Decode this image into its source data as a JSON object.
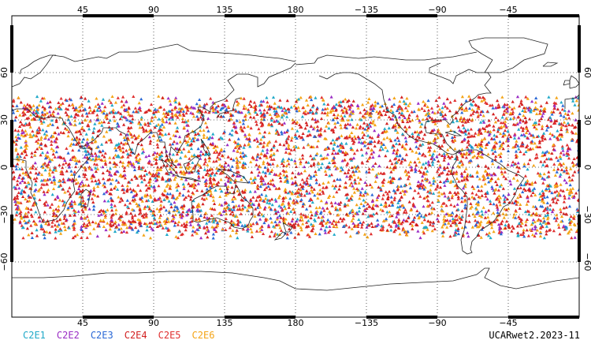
{
  "map": {
    "top_lon_ticks": [
      "45",
      "90",
      "135",
      "180",
      "−135",
      "−90",
      "−45"
    ],
    "bottom_lon_ticks": [
      "45",
      "90",
      "135",
      "180",
      "−135",
      "−90",
      "−45"
    ],
    "lat_ticks": [
      "60",
      "30",
      "0",
      "−30",
      "−60"
    ],
    "observation_lat_range": [
      -45,
      45
    ],
    "grid": "dotted",
    "projection": "cylindrical equidistant",
    "lon_range": [
      0,
      360
    ]
  },
  "legend": {
    "entries": [
      {
        "label": "C2E1",
        "color": "#21a9c8"
      },
      {
        "label": "C2E2",
        "color": "#9a2cc4"
      },
      {
        "label": "C2E3",
        "color": "#2a68d6"
      },
      {
        "label": "C2E4",
        "color": "#d22020"
      },
      {
        "label": "C2E5",
        "color": "#e03030"
      },
      {
        "label": "C2E6",
        "color": "#f4a416"
      }
    ]
  },
  "product": {
    "label": "UCARwet2.2023-11"
  }
}
